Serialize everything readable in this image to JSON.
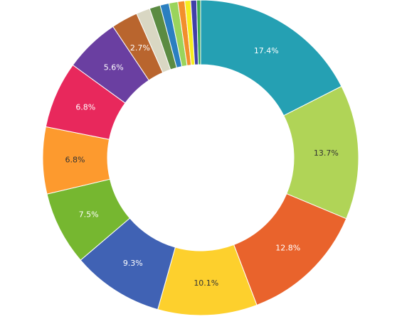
{
  "chart_data": {
    "type": "pie",
    "donut": true,
    "title": "",
    "slices": [
      {
        "value": 17.4,
        "label": "17.4%",
        "color": "#25a0b3",
        "label_color": "#ffffff"
      },
      {
        "value": 13.7,
        "label": "13.7%",
        "color": "#b0d457",
        "label_color": "#333333"
      },
      {
        "value": 12.8,
        "label": "12.8%",
        "color": "#e9632c",
        "label_color": "#ffffff"
      },
      {
        "value": 10.1,
        "label": "10.1%",
        "color": "#fdd02d",
        "label_color": "#333333"
      },
      {
        "value": 9.3,
        "label": "9.3%",
        "color": "#4062b4",
        "label_color": "#ffffff"
      },
      {
        "value": 7.5,
        "label": "7.5%",
        "color": "#76b730",
        "label_color": "#ffffff"
      },
      {
        "value": 6.8,
        "label": "6.8%",
        "color": "#fd9a2e",
        "label_color": "#333333"
      },
      {
        "value": 6.8,
        "label": "6.8%",
        "color": "#e8285c",
        "label_color": "#ffffff"
      },
      {
        "value": 5.6,
        "label": "5.6%",
        "color": "#6a3fa1",
        "label_color": "#ffffff"
      },
      {
        "value": 2.7,
        "label": "2.7%",
        "color": "#b9652e",
        "label_color": "#ffffff"
      },
      {
        "value": 1.4,
        "label": "",
        "color": "#d9d7c3",
        "label_color": "#333333"
      },
      {
        "value": 1.1,
        "label": "",
        "color": "#5b8b42",
        "label_color": "#ffffff"
      },
      {
        "value": 0.9,
        "label": "",
        "color": "#2b7fc0",
        "label_color": "#ffffff"
      },
      {
        "value": 0.9,
        "label": "",
        "color": "#9ad45c",
        "label_color": "#333333"
      },
      {
        "value": 0.7,
        "label": "",
        "color": "#f28f2c",
        "label_color": "#333333"
      },
      {
        "value": 0.6,
        "label": "",
        "color": "#f6ed1e",
        "label_color": "#333333"
      },
      {
        "value": 0.6,
        "label": "",
        "color": "#4040a8",
        "label_color": "#ffffff"
      },
      {
        "value": 0.4,
        "label": "",
        "color": "#3caa52",
        "label_color": "#ffffff"
      }
    ]
  }
}
